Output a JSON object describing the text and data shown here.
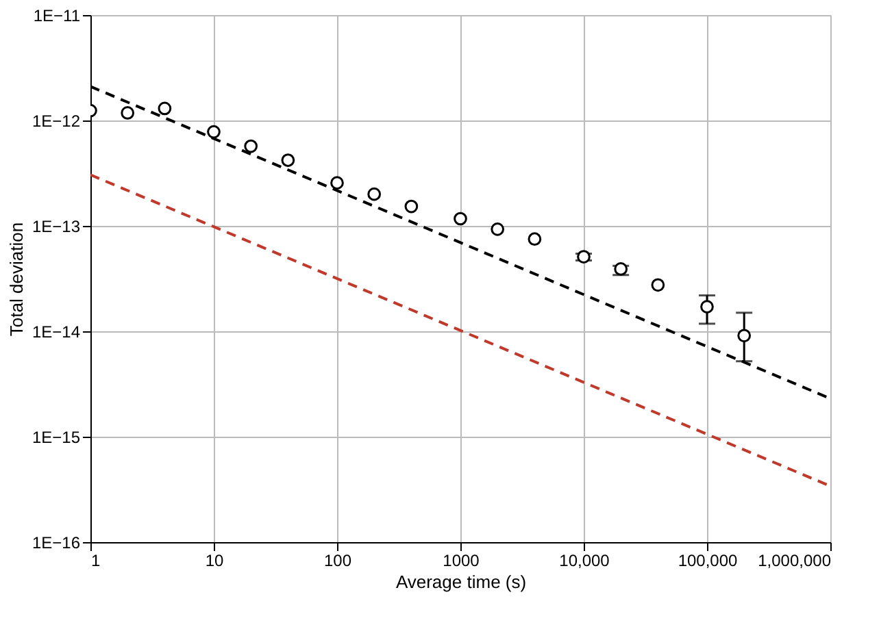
{
  "chart_data": {
    "type": "scatter",
    "xlabel": "Average time (s)",
    "ylabel": "Total deviation",
    "log": "xy",
    "grid": true,
    "xlim": [
      1,
      1000000
    ],
    "ylim": [
      1e-16,
      1e-11
    ],
    "xticks": [
      1,
      10,
      100,
      1000,
      {
        "value": 10000,
        "label": "10,000"
      },
      {
        "value": 100000,
        "label": "100,000"
      },
      {
        "value": 1000000,
        "label": "1,000,000"
      }
    ],
    "yticks": [
      {
        "value": 1e-16,
        "label": "1E−16"
      },
      {
        "value": 1e-15,
        "label": "1E−15"
      },
      {
        "value": 1e-14,
        "label": "1E−14"
      },
      {
        "value": 1e-13,
        "label": "1E−13"
      },
      {
        "value": 1e-12,
        "label": "1E−12"
      },
      {
        "value": 1e-11,
        "label": "1E−11"
      }
    ],
    "series": [
      {
        "color": "#000000",
        "marker": "circle",
        "x": [
          1,
          2,
          4,
          10,
          20,
          40,
          100,
          200,
          400,
          1000,
          2000,
          4000,
          10000,
          20000,
          40000,
          100000,
          200000
        ],
        "values": [
          1.24e-12,
          1.18e-12,
          1.3e-12,
          7.8e-13,
          5.7e-13,
          4.2e-13,
          2.56e-13,
          2e-13,
          1.53e-13,
          1.17e-13,
          9.3e-14,
          7.5e-14,
          5.1e-14,
          3.9e-14,
          2.75e-14,
          1.71e-14,
          9.1e-15
        ],
        "errors": [
          null,
          null,
          null,
          null,
          null,
          null,
          null,
          null,
          null,
          null,
          null,
          null,
          [
            4.7e-14,
            5.45e-14
          ],
          [
            3.42e-14,
            4.18e-14
          ],
          null,
          [
            1.18e-14,
            2.19e-14
          ],
          [
            5.2e-15,
            1.5e-14
          ]
        ]
      },
      {
        "type": "line",
        "color": "#000000",
        "line_style": "dashed",
        "x": [
          1,
          1000000
        ],
        "values": [
          2.1e-12,
          2.3e-15
        ]
      },
      {
        "type": "line",
        "color": "#c0392b",
        "line_style": "dashed",
        "x": [
          1,
          1000000
        ],
        "values": [
          3.05e-13,
          3.4e-16
        ]
      }
    ]
  }
}
